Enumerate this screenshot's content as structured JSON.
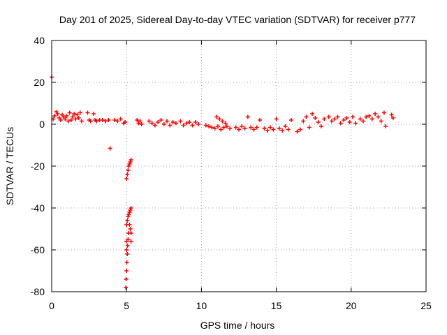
{
  "chart_data": {
    "type": "scatter",
    "title": "Day 201 of 2025, Sidereal Day-to-day VTEC variation (SDTVAR) for receiver p777",
    "xlabel": "GPS time / hours",
    "ylabel": "SDTVAR / TECUs",
    "xlim": [
      0,
      25
    ],
    "ylim": [
      -80,
      40
    ],
    "xticks": [
      0,
      5,
      10,
      15,
      20,
      25
    ],
    "yticks": [
      -80,
      -60,
      -40,
      -20,
      0,
      20,
      40
    ],
    "grid": true,
    "marker": "+",
    "color": "#ff0000",
    "series": [
      {
        "values": [
          [
            0.0,
            22.5
          ],
          [
            0.1,
            2.5
          ],
          [
            0.2,
            4.0
          ],
          [
            0.3,
            6.0
          ],
          [
            0.4,
            5.0
          ],
          [
            0.5,
            3.0
          ],
          [
            0.6,
            2.0
          ],
          [
            0.7,
            4.5
          ],
          [
            0.8,
            3.5
          ],
          [
            0.9,
            2.5
          ],
          [
            1.0,
            4.0
          ],
          [
            1.1,
            1.5
          ],
          [
            1.2,
            5.5
          ],
          [
            1.3,
            2.0
          ],
          [
            1.4,
            3.5
          ],
          [
            1.5,
            5.0
          ],
          [
            1.6,
            2.5
          ],
          [
            1.7,
            4.5
          ],
          [
            1.8,
            3.0
          ],
          [
            1.9,
            5.5
          ],
          [
            2.0,
            1.5
          ],
          [
            2.4,
            5.5
          ],
          [
            2.5,
            2.0
          ],
          [
            2.6,
            1.5
          ],
          [
            2.8,
            5.0
          ],
          [
            2.9,
            2.0
          ],
          [
            3.0,
            1.5
          ],
          [
            3.2,
            2.0
          ],
          [
            3.4,
            2.0
          ],
          [
            3.6,
            1.5
          ],
          [
            3.8,
            2.0
          ],
          [
            3.9,
            -11.5
          ],
          [
            4.2,
            2.0
          ],
          [
            4.4,
            1.5
          ],
          [
            4.6,
            2.5
          ],
          [
            4.8,
            0.5
          ],
          [
            4.9,
            1.0
          ],
          [
            5.0,
            -26
          ],
          [
            5.05,
            -24
          ],
          [
            5.1,
            -22
          ],
          [
            5.15,
            -20
          ],
          [
            5.2,
            -19
          ],
          [
            5.25,
            -18
          ],
          [
            5.3,
            -17
          ],
          [
            4.95,
            -78
          ],
          [
            4.97,
            -74
          ],
          [
            5.0,
            -70
          ],
          [
            5.02,
            -66
          ],
          [
            5.05,
            -62
          ],
          [
            5.07,
            -58
          ],
          [
            5.1,
            -55
          ],
          [
            5.12,
            -52
          ],
          [
            5.0,
            -48
          ],
          [
            5.05,
            -46
          ],
          [
            5.1,
            -44
          ],
          [
            5.15,
            -43
          ],
          [
            5.2,
            -42
          ],
          [
            5.25,
            -41
          ],
          [
            5.3,
            -40
          ],
          [
            5.2,
            -48
          ],
          [
            5.25,
            -50
          ],
          [
            5.3,
            -52
          ],
          [
            5.3,
            -56
          ],
          [
            4.98,
            -56
          ],
          [
            5.0,
            -60
          ],
          [
            5.7,
            2.0
          ],
          [
            5.8,
            0.5
          ],
          [
            5.9,
            1.5
          ],
          [
            6.0,
            0.0
          ],
          [
            6.5,
            1.5
          ],
          [
            6.7,
            0.5
          ],
          [
            6.9,
            -0.5
          ],
          [
            7.1,
            1.0
          ],
          [
            7.3,
            2.0
          ],
          [
            7.5,
            0.0
          ],
          [
            7.7,
            1.5
          ],
          [
            7.9,
            -0.5
          ],
          [
            8.1,
            1.0
          ],
          [
            8.3,
            0.5
          ],
          [
            8.6,
            1.5
          ],
          [
            8.8,
            -0.5
          ],
          [
            9.0,
            0.5
          ],
          [
            9.2,
            1.0
          ],
          [
            9.4,
            -0.5
          ],
          [
            9.6,
            1.0
          ],
          [
            9.8,
            0.0
          ],
          [
            10.3,
            -0.5
          ],
          [
            10.5,
            -1.0
          ],
          [
            10.7,
            -1.5
          ],
          [
            10.9,
            -2.0
          ],
          [
            11.1,
            -1.0
          ],
          [
            11.3,
            -2.5
          ],
          [
            11.5,
            -1.5
          ],
          [
            11.7,
            -1.0
          ],
          [
            11.9,
            -2.0
          ],
          [
            11.0,
            3.5
          ],
          [
            11.2,
            2.5
          ],
          [
            11.4,
            1.5
          ],
          [
            11.6,
            0.5
          ],
          [
            12.3,
            -1.5
          ],
          [
            12.5,
            -2.5
          ],
          [
            12.7,
            -1.0
          ],
          [
            12.9,
            -2.0
          ],
          [
            13.1,
            3.5
          ],
          [
            13.3,
            -1.5
          ],
          [
            13.5,
            -2.5
          ],
          [
            13.7,
            -1.5
          ],
          [
            13.9,
            2.0
          ],
          [
            14.2,
            -2.0
          ],
          [
            14.4,
            -3.0
          ],
          [
            14.6,
            -1.5
          ],
          [
            14.8,
            -2.5
          ],
          [
            15.0,
            2.5
          ],
          [
            15.2,
            -2.0
          ],
          [
            15.4,
            -3.0
          ],
          [
            15.6,
            -1.0
          ],
          [
            15.8,
            -2.5
          ],
          [
            16.0,
            2.0
          ],
          [
            16.4,
            -3.5
          ],
          [
            16.6,
            -2.5
          ],
          [
            16.8,
            1.5
          ],
          [
            17.0,
            3.5
          ],
          [
            17.2,
            -1.5
          ],
          [
            17.4,
            5.0
          ],
          [
            17.6,
            3.0
          ],
          [
            17.8,
            1.0
          ],
          [
            18.0,
            -1.0
          ],
          [
            18.2,
            2.5
          ],
          [
            18.5,
            3.5
          ],
          [
            18.7,
            1.5
          ],
          [
            18.9,
            2.5
          ],
          [
            19.1,
            3.5
          ],
          [
            19.3,
            0.5
          ],
          [
            19.5,
            2.0
          ],
          [
            19.7,
            3.0
          ],
          [
            19.9,
            1.0
          ],
          [
            20.1,
            3.5
          ],
          [
            20.3,
            0.5
          ],
          [
            20.6,
            2.5
          ],
          [
            20.8,
            1.5
          ],
          [
            21.0,
            3.5
          ],
          [
            21.2,
            4.0
          ],
          [
            21.4,
            2.5
          ],
          [
            21.6,
            5.0
          ],
          [
            21.8,
            3.5
          ],
          [
            22.0,
            1.5
          ],
          [
            22.2,
            5.5
          ],
          [
            22.3,
            -1.0
          ],
          [
            22.7,
            4.5
          ],
          [
            22.8,
            3.0
          ]
        ]
      }
    ]
  }
}
